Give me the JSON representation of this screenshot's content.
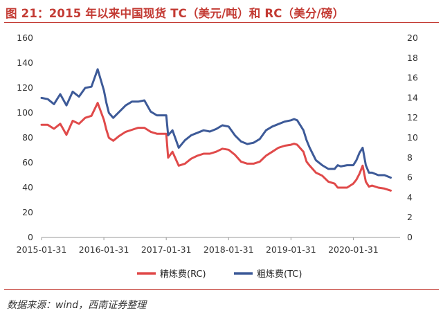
{
  "title": "图 21：2015 年以来中国现货 TC（美元/吨）和 RC（美分/磅）",
  "source": "数据来源：wind，西南证券整理",
  "colors": {
    "rc": "#e04a4a",
    "tc": "#3d5a98",
    "title": "#c33a33"
  },
  "chart_data": {
    "type": "line",
    "x_ticks": [
      "2015-01-31",
      "2016-01-31",
      "2017-01-31",
      "2018-01-31",
      "2019-01-31",
      "2020-01-31"
    ],
    "ylim_left": [
      0,
      160
    ],
    "yticks_left": [
      "0",
      "20",
      "40",
      "60",
      "80",
      "100",
      "120",
      "140",
      "160"
    ],
    "ylim_right": [
      0,
      20
    ],
    "yticks_right": [
      "0",
      "2",
      "4",
      "6",
      "8",
      "10",
      "12",
      "14",
      "16",
      "18",
      "20"
    ],
    "x_range": [
      2015.0,
      2020.75
    ],
    "legend_position": "bottom",
    "grid": false,
    "series": [
      {
        "name": "精炼费(RC)",
        "axis": "right",
        "color": "#e04a4a",
        "x": [
          2015.0,
          2015.1,
          2015.2,
          2015.3,
          2015.4,
          2015.5,
          2015.6,
          2015.7,
          2015.8,
          2015.9,
          2016.0,
          2016.04,
          2016.08,
          2016.15,
          2016.25,
          2016.35,
          2016.45,
          2016.55,
          2016.65,
          2016.75,
          2016.85,
          2016.95,
          2017.0,
          2017.03,
          2017.1,
          2017.2,
          2017.3,
          2017.4,
          2017.5,
          2017.6,
          2017.7,
          2017.8,
          2017.9,
          2018.0,
          2018.1,
          2018.2,
          2018.3,
          2018.4,
          2018.5,
          2018.6,
          2018.7,
          2018.8,
          2018.9,
          2019.0,
          2019.05,
          2019.1,
          2019.2,
          2019.25,
          2019.3,
          2019.4,
          2019.5,
          2019.6,
          2019.7,
          2019.75,
          2019.8,
          2019.9,
          2020.0,
          2020.05,
          2020.1,
          2020.15,
          2020.2,
          2020.25,
          2020.3,
          2020.4,
          2020.5,
          2020.6
        ],
        "y": [
          11.3,
          11.3,
          10.9,
          11.4,
          10.3,
          11.7,
          11.4,
          12.0,
          12.2,
          13.5,
          11.8,
          10.8,
          10.0,
          9.7,
          10.2,
          10.6,
          10.8,
          11.0,
          11.0,
          10.6,
          10.4,
          10.4,
          10.4,
          8.0,
          8.6,
          7.2,
          7.4,
          7.9,
          8.2,
          8.4,
          8.4,
          8.6,
          8.9,
          8.8,
          8.3,
          7.6,
          7.4,
          7.4,
          7.6,
          8.2,
          8.6,
          9.0,
          9.2,
          9.3,
          9.4,
          9.3,
          8.6,
          7.6,
          7.2,
          6.5,
          6.2,
          5.6,
          5.4,
          5.0,
          5.0,
          5.0,
          5.4,
          5.8,
          6.4,
          7.2,
          5.6,
          5.1,
          5.2,
          5.0,
          4.9,
          4.7
        ]
      },
      {
        "name": "粗炼费(TC)",
        "axis": "left",
        "color": "#3d5a98",
        "x": [
          2015.0,
          2015.1,
          2015.2,
          2015.3,
          2015.4,
          2015.5,
          2015.6,
          2015.7,
          2015.8,
          2015.9,
          2016.0,
          2016.04,
          2016.08,
          2016.15,
          2016.25,
          2016.35,
          2016.45,
          2016.55,
          2016.65,
          2016.75,
          2016.85,
          2016.95,
          2017.0,
          2017.03,
          2017.1,
          2017.2,
          2017.3,
          2017.4,
          2017.5,
          2017.6,
          2017.7,
          2017.8,
          2017.9,
          2018.0,
          2018.1,
          2018.2,
          2018.3,
          2018.4,
          2018.5,
          2018.6,
          2018.7,
          2018.8,
          2018.9,
          2019.0,
          2019.05,
          2019.1,
          2019.2,
          2019.25,
          2019.3,
          2019.4,
          2019.5,
          2019.6,
          2019.7,
          2019.75,
          2019.8,
          2019.9,
          2020.0,
          2020.05,
          2020.1,
          2020.15,
          2020.2,
          2020.25,
          2020.3,
          2020.4,
          2020.5,
          2020.6
        ],
        "y": [
          112,
          111,
          107,
          115,
          106,
          117,
          113,
          120,
          121,
          135,
          118,
          108,
          100,
          96,
          101,
          106,
          109,
          109,
          110,
          101,
          98,
          98,
          98,
          82,
          86,
          72,
          78,
          82,
          84,
          86,
          85,
          87,
          90,
          89,
          82,
          77,
          75,
          76,
          79,
          86,
          89,
          91,
          93,
          94,
          95,
          94,
          86,
          78,
          72,
          62,
          58,
          55,
          55,
          58,
          57,
          58,
          58,
          62,
          68,
          72,
          58,
          52,
          52,
          50,
          50,
          48
        ]
      }
    ]
  }
}
